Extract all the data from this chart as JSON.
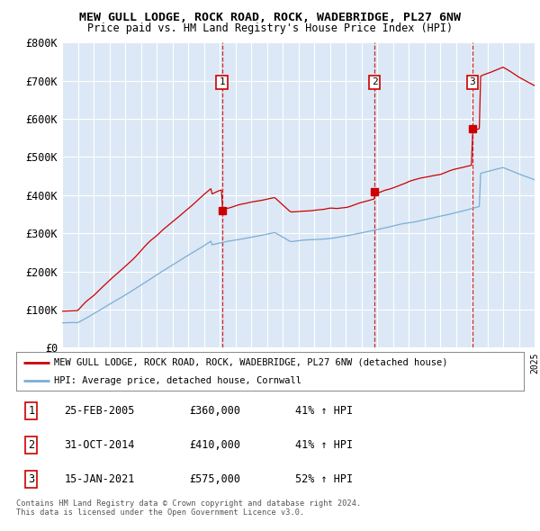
{
  "title": "MEW GULL LODGE, ROCK ROAD, ROCK, WADEBRIDGE, PL27 6NW",
  "subtitle": "Price paid vs. HM Land Registry's House Price Index (HPI)",
  "ylim": [
    0,
    800000
  ],
  "yticks": [
    0,
    100000,
    200000,
    300000,
    400000,
    500000,
    600000,
    700000,
    800000
  ],
  "ytick_labels": [
    "£0",
    "£100K",
    "£200K",
    "£300K",
    "£400K",
    "£500K",
    "£600K",
    "£700K",
    "£800K"
  ],
  "background_color": "#dce8f5",
  "grid_color": "#ffffff",
  "red_line_color": "#cc0000",
  "blue_line_color": "#7aaed6",
  "sale_year_floats": [
    2005.15,
    2014.83,
    2021.04
  ],
  "sale_prices": [
    360000,
    410000,
    575000
  ],
  "sale_labels": [
    "1",
    "2",
    "3"
  ],
  "vline_color": "#cc0000",
  "marker_box_color": "#cc0000",
  "legend_items": [
    "MEW GULL LODGE, ROCK ROAD, ROCK, WADEBRIDGE, PL27 6NW (detached house)",
    "HPI: Average price, detached house, Cornwall"
  ],
  "table_data": [
    [
      "1",
      "25-FEB-2005",
      "£360,000",
      "41% ↑ HPI"
    ],
    [
      "2",
      "31-OCT-2014",
      "£410,000",
      "41% ↑ HPI"
    ],
    [
      "3",
      "15-JAN-2021",
      "£575,000",
      "52% ↑ HPI"
    ]
  ],
  "footnote": "Contains HM Land Registry data © Crown copyright and database right 2024.\nThis data is licensed under the Open Government Licence v3.0.",
  "x_start_year": 1995,
  "x_end_year": 2025
}
